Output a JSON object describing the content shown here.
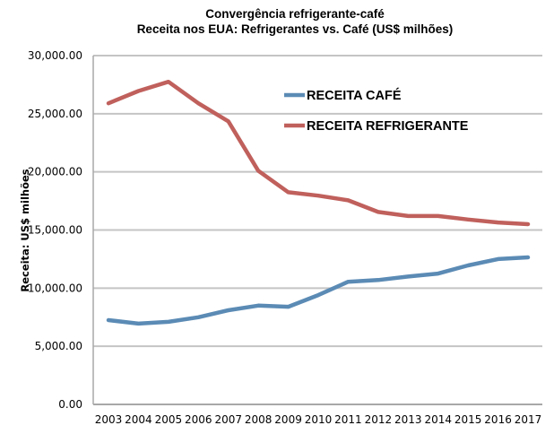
{
  "chart_data": {
    "type": "line",
    "title": "Convergência refrigerante-café",
    "subtitle": "Receita nos EUA: Refrigerantes vs. Café (US$ milhões)",
    "xlabel": "",
    "ylabel": "Receita: US$ milhões",
    "ylim": [
      0,
      30000
    ],
    "yticks": [
      0,
      5000,
      10000,
      15000,
      20000,
      25000,
      30000
    ],
    "ytick_labels": [
      "0.00",
      "5,000.00",
      "10,000.00",
      "15,000.00",
      "20,000.00",
      "25,000.00",
      "30,000.00"
    ],
    "grid": true,
    "legend_position": "top-center",
    "categories": [
      "2003",
      "2004",
      "2005",
      "2006",
      "2007",
      "2008",
      "2009",
      "2010",
      "2011",
      "2012",
      "2013",
      "2014",
      "2015",
      "2016",
      "2017"
    ],
    "series": [
      {
        "name": "RECEITA CAFÉ",
        "color": "#5b8bb5",
        "values": [
          7250,
          6950,
          7100,
          7500,
          8100,
          8500,
          8400,
          9400,
          10550,
          10700,
          11000,
          11250,
          11950,
          12500,
          12650
        ]
      },
      {
        "name": "RECEITA REFRIGERANTE",
        "color": "#c0605c",
        "values": [
          25900,
          26950,
          27750,
          25900,
          24350,
          20100,
          18250,
          17950,
          17550,
          16550,
          16200,
          16200,
          15900,
          15650,
          15500
        ]
      }
    ]
  }
}
